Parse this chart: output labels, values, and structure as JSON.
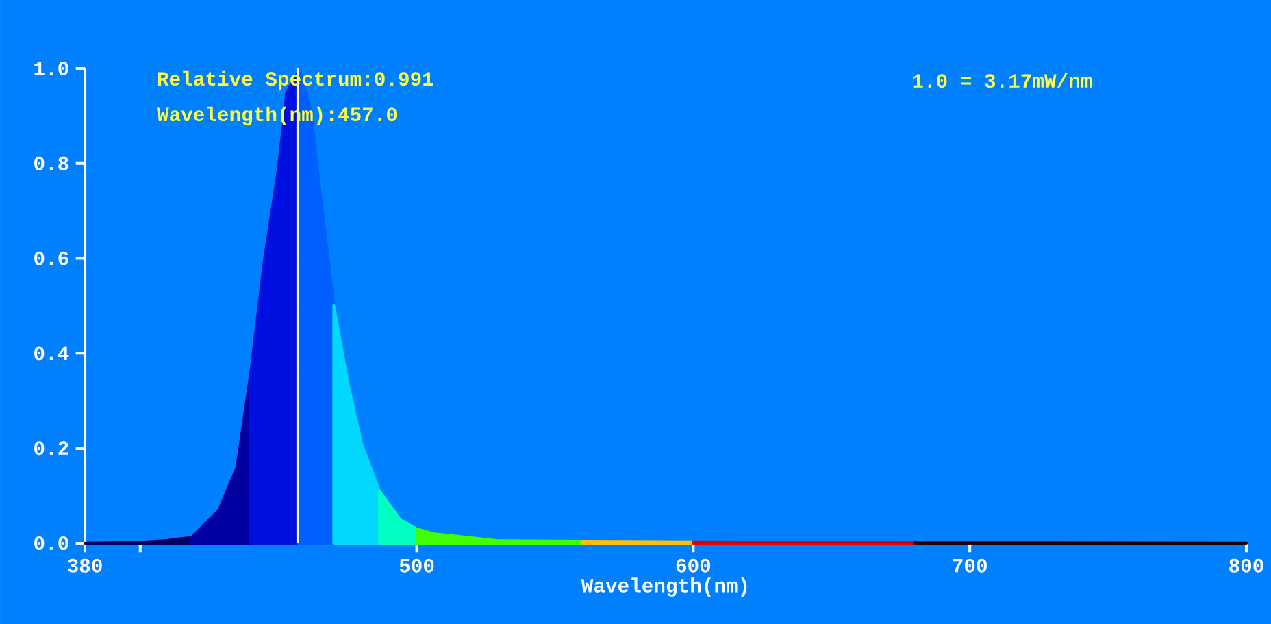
{
  "chart_data": {
    "type": "area",
    "xlabel": "Wavelength(nm)",
    "annotations": [
      "Relative Spectrum:0.991",
      "Wavelength(nm):457.0",
      "1.0 = 3.17mW/nm"
    ],
    "xlim": [
      380,
      800
    ],
    "ylim": [
      0,
      1
    ],
    "xticks": [
      380,
      {
        "value": 400,
        "label": null
      },
      500,
      600,
      700,
      800
    ],
    "yticks": [
      {
        "value": 0,
        "label": "0.0"
      },
      0.2,
      0.4,
      0.6,
      0.8,
      {
        "value": 1,
        "label": "1.0"
      }
    ],
    "ref_lines": [
      {
        "axis": "x",
        "value": 457,
        "color": "#ffffff"
      }
    ],
    "series": [
      {
        "color": "#000060",
        "x": [
          380,
          400,
          410,
          418.6
        ],
        "values": [
          0,
          0.002,
          0.006,
          0.012
        ]
      },
      {
        "color": "#0000a0",
        "x": [
          418.6,
          428.5,
          435,
          440
        ],
        "values": [
          0.012,
          0.07,
          0.16,
          0.36
        ]
      },
      {
        "color": "#0010e0",
        "x": [
          440,
          445,
          450,
          453,
          457
        ],
        "values": [
          0.36,
          0.6,
          0.79,
          0.95,
          0.991
        ]
      },
      {
        "color": "#0060ff",
        "x": [
          457,
          458,
          461.7,
          465,
          470
        ],
        "values": [
          0.991,
          0.99,
          0.91,
          0.74,
          0.5
        ]
      },
      {
        "color": "#00d8ff",
        "x": [
          470,
          475,
          480,
          486.5
        ],
        "values": [
          0.5,
          0.34,
          0.21,
          0.11
        ]
      },
      {
        "color": "#00ffc0",
        "x": [
          486.5,
          494,
          500
        ],
        "values": [
          0.11,
          0.05,
          0.03
        ]
      },
      {
        "color": "#40ff00",
        "x": [
          500,
          506,
          530,
          560
        ],
        "values": [
          0.03,
          0.02,
          0.005,
          0.004
        ]
      },
      {
        "color": "#ffc000",
        "x": [
          560,
          600
        ],
        "values": [
          0.004,
          0.003
        ]
      },
      {
        "color": "#e00000",
        "x": [
          600,
          650,
          680
        ],
        "values": [
          0.003,
          0.002,
          0.001
        ]
      },
      {
        "color": "#200000",
        "x": [
          680,
          700,
          800
        ],
        "values": [
          0.001,
          0.001,
          0
        ]
      }
    ]
  }
}
